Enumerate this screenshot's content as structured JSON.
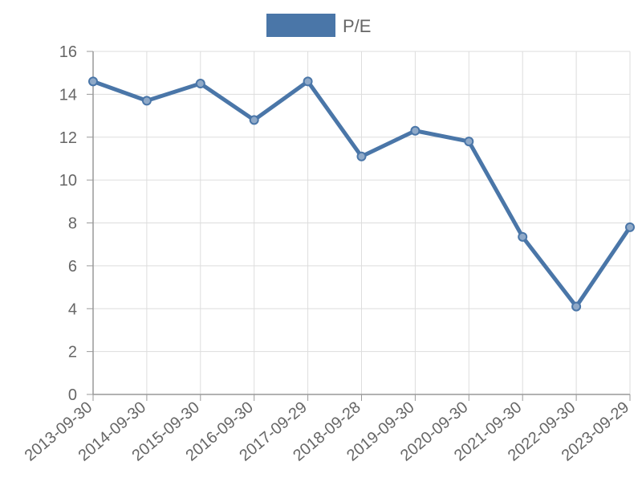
{
  "chart_data": {
    "type": "line",
    "title": "",
    "xlabel": "",
    "ylabel": "",
    "categories": [
      "2013-09-30",
      "2014-09-30",
      "2015-09-30",
      "2016-09-30",
      "2017-09-29",
      "2018-09-28",
      "2019-09-30",
      "2020-09-30",
      "2021-09-30",
      "2022-09-30",
      "2023-09-29"
    ],
    "series": [
      {
        "name": "P/E",
        "values": [
          14.6,
          13.7,
          14.5,
          12.8,
          14.6,
          11.1,
          12.3,
          11.8,
          7.35,
          4.1,
          7.8
        ]
      }
    ],
    "ylim": [
      0,
      16
    ],
    "yticks": [
      "0",
      "2",
      "4",
      "6",
      "8",
      "10",
      "12",
      "14",
      "16"
    ],
    "grid": true,
    "legend_position": "top-center",
    "colors": {
      "line": "#4a76a8",
      "marker_fill": "#8fa9c8",
      "grid": "#dddddd",
      "axis": "#999999",
      "text": "#666666"
    }
  }
}
